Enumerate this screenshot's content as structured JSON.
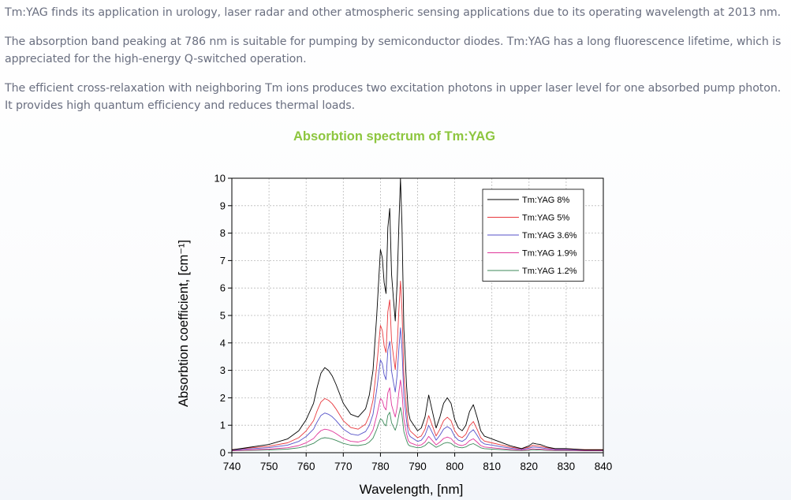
{
  "article": {
    "paragraphs": [
      "Tm:YAG finds its application in urology, laser radar and other atmospheric sensing applications due to its operating wavelength at 2013 nm.",
      "The absorption band peaking at 786 nm is suitable for pumping by semiconductor diodes. Tm:YAG has a long fluorescence lifetime, which is appreciated for the high-energy Q-switched operation.",
      "The efficient cross-relaxation with neighboring Tm ions produces two excitation photons in upper laser level for one absorbed pump photon. It provides high quantum efficiency and reduces thermal loads."
    ]
  },
  "chart_data": {
    "type": "line",
    "title": "Absorbtion spectrum of Tm:YAG",
    "title_color": "#8dc63f",
    "xlabel": "Wavelength, [nm]",
    "ylabel": "Absorbtion coefficient, [cm⁻¹]",
    "xlim": [
      740,
      840
    ],
    "ylim": [
      0,
      10
    ],
    "xticks": [
      740,
      750,
      760,
      770,
      780,
      790,
      800,
      810,
      820,
      830,
      840
    ],
    "yticks": [
      0,
      1,
      2,
      3,
      4,
      5,
      6,
      7,
      8,
      9,
      10
    ],
    "grid": true,
    "legend_position": "top-right",
    "series": [
      {
        "name": "Tm:YAG 8%",
        "color": "#000000",
        "scale": 1.0,
        "x": [
          740,
          745,
          750,
          755,
          758,
          760,
          762,
          763,
          764,
          765,
          766,
          767,
          768,
          770,
          772,
          774,
          776,
          777,
          778,
          779,
          780,
          780.5,
          781,
          781.5,
          782,
          782.5,
          783,
          783.5,
          784,
          784.5,
          785,
          785.4,
          785.8,
          786.3,
          787,
          787.5,
          788,
          789,
          790,
          791,
          792,
          793,
          794,
          795,
          796,
          797,
          798,
          799,
          800,
          801,
          802,
          803,
          804,
          805,
          806,
          807,
          808,
          810,
          813,
          815,
          818,
          820,
          821,
          822,
          823,
          825,
          827,
          830,
          835,
          840
        ],
        "y": [
          0.1,
          0.2,
          0.3,
          0.5,
          0.8,
          1.2,
          1.8,
          2.4,
          2.9,
          3.1,
          3.0,
          2.8,
          2.5,
          1.8,
          1.4,
          1.3,
          1.6,
          2.1,
          3.0,
          5.0,
          7.4,
          7.1,
          6.2,
          5.8,
          8.2,
          8.9,
          6.5,
          5.6,
          4.8,
          6.2,
          8.5,
          10.0,
          8.3,
          4.5,
          2.5,
          1.5,
          1.2,
          1.0,
          0.8,
          0.9,
          1.3,
          2.1,
          1.5,
          0.9,
          1.3,
          1.8,
          2.0,
          1.8,
          1.2,
          0.9,
          0.8,
          1.0,
          1.5,
          1.75,
          1.3,
          0.8,
          0.6,
          0.5,
          0.35,
          0.25,
          0.15,
          0.25,
          0.35,
          0.32,
          0.3,
          0.2,
          0.15,
          0.15,
          0.1,
          0.1
        ]
      },
      {
        "name": "Tm:YAG 5%",
        "color": "#e8383d",
        "scale": 0.62
      },
      {
        "name": "Tm:YAG 3.6%",
        "color": "#5552c8",
        "scale": 0.45
      },
      {
        "name": "Tm:YAG 1.9%",
        "color": "#e0369a",
        "scale": 0.26
      },
      {
        "name": "Tm:YAG 1.2%",
        "color": "#3c8a5a",
        "scale": 0.16
      }
    ]
  }
}
